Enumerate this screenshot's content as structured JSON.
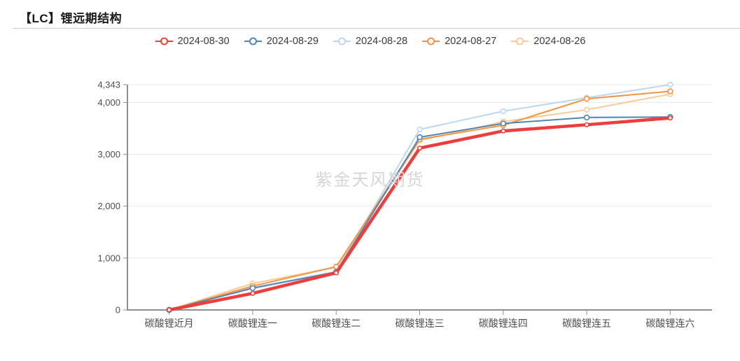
{
  "title": "【LC】锂远期结构",
  "watermark": "紫金天风期货",
  "chart_data": {
    "type": "line",
    "categories": [
      "碳酸锂近月",
      "碳酸锂连一",
      "碳酸锂连二",
      "碳酸锂连三",
      "碳酸锂连四",
      "碳酸锂连五",
      "碳酸锂连六"
    ],
    "series": [
      {
        "name": "2024-08-30",
        "color": "#ee3d3a",
        "line_width": 4.5,
        "values": [
          0,
          320,
          715,
          3120,
          3450,
          3570,
          3700
        ]
      },
      {
        "name": "2024-08-29",
        "color": "#4e86b5",
        "line_width": 2,
        "values": [
          0,
          420,
          730,
          3330,
          3595,
          3710,
          3720
        ]
      },
      {
        "name": "2024-08-28",
        "color": "#bdd7f0",
        "line_width": 2,
        "values": [
          0,
          430,
          740,
          3480,
          3830,
          4090,
          4343
        ]
      },
      {
        "name": "2024-08-27",
        "color": "#f59440",
        "line_width": 2,
        "values": [
          0,
          460,
          835,
          3290,
          3560,
          4070,
          4215
        ]
      },
      {
        "name": "2024-08-26",
        "color": "#fbcb97",
        "line_width": 2,
        "values": [
          0,
          510,
          825,
          3265,
          3630,
          3860,
          4160
        ]
      }
    ],
    "title": "【LC】锂远期结构",
    "xlabel": "",
    "ylabel": "",
    "ylim": [
      0,
      4343
    ],
    "yticks": [
      0,
      1000,
      2000,
      3000,
      4000,
      4343
    ],
    "grid": true,
    "legend_position": "top",
    "draw_order": [
      2,
      4,
      3,
      1,
      0
    ],
    "colors": {
      "axis": "#8f8f8f",
      "gridline": "#e8e8e8",
      "tick_label": "#4d4d4d",
      "legend_text": "#3a3a3a",
      "watermark": "#d6d6d6"
    }
  }
}
